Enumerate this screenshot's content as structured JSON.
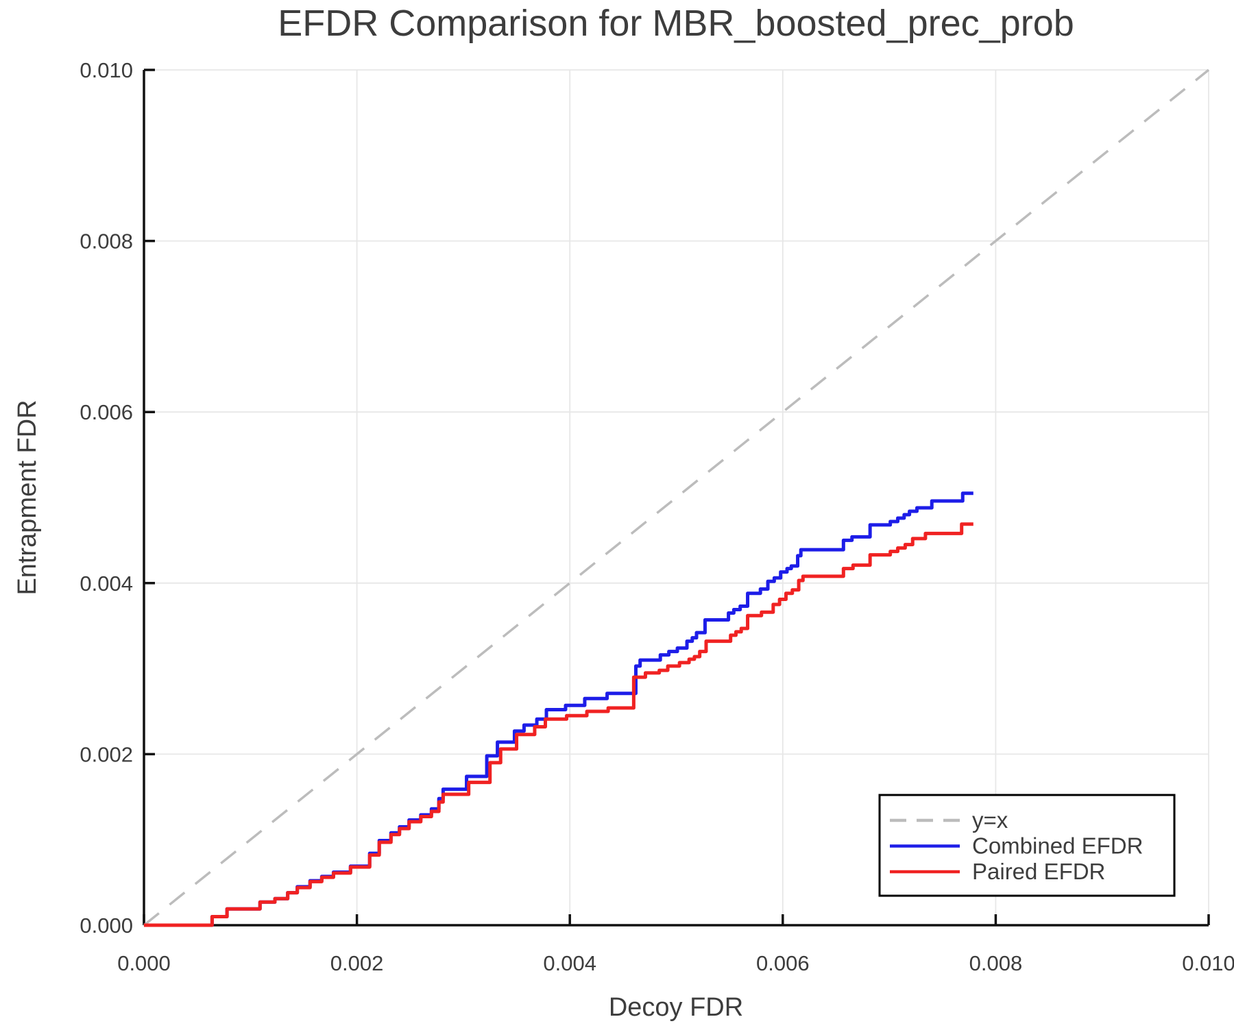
{
  "chart_data": {
    "type": "line",
    "title": "EFDR Comparison for MBR_boosted_prec_prob",
    "xlabel": "Decoy FDR",
    "ylabel": "Entrapment FDR",
    "xlim": [
      0.0,
      0.01
    ],
    "ylim": [
      0.0,
      0.01
    ],
    "grid": true,
    "legend_position": "bottom-right",
    "xticks": {
      "values": [
        0.0,
        0.002,
        0.004,
        0.006,
        0.008,
        0.01
      ],
      "labels": [
        "0.000",
        "0.002",
        "0.004",
        "0.006",
        "0.008",
        "0.010"
      ]
    },
    "yticks": {
      "values": [
        0.0,
        0.002,
        0.004,
        0.006,
        0.008,
        0.01
      ],
      "labels": [
        "0.000",
        "0.002",
        "0.004",
        "0.006",
        "0.008",
        "0.010"
      ]
    },
    "style": {
      "grid_color": "#e7e7e7",
      "spine_color": "#111111",
      "text_color": "#3d3d3d",
      "legend_border_color": "#000000",
      "legend_fill": "#ffffff",
      "background": "#ffffff"
    },
    "series": [
      {
        "name": "y=x",
        "color": "#bcbcbc",
        "dashed": true,
        "step": false,
        "width": 3.5,
        "points": [
          [
            0.0,
            0.0
          ],
          [
            0.01,
            0.01
          ]
        ]
      },
      {
        "name": "Combined EFDR",
        "color": "#1d1de8",
        "dashed": false,
        "step": true,
        "width": 5,
        "points": [
          [
            0.0,
            0.0
          ],
          [
            0.00064,
            0.0001
          ],
          [
            0.00078,
            0.00019
          ],
          [
            0.00109,
            0.00027
          ],
          [
            0.00123,
            0.00031
          ],
          [
            0.00135,
            0.00038
          ],
          [
            0.00144,
            0.00045
          ],
          [
            0.00156,
            0.00052
          ],
          [
            0.00167,
            0.00057
          ],
          [
            0.00178,
            0.00062
          ],
          [
            0.00194,
            0.00069
          ],
          [
            0.00212,
            0.00084
          ],
          [
            0.00221,
            0.00099
          ],
          [
            0.00232,
            0.00108
          ],
          [
            0.0024,
            0.00115
          ],
          [
            0.00249,
            0.00123
          ],
          [
            0.0026,
            0.00129
          ],
          [
            0.0027,
            0.00136
          ],
          [
            0.00277,
            0.00148
          ],
          [
            0.00281,
            0.00159
          ],
          [
            0.00303,
            0.00174
          ],
          [
            0.00322,
            0.00198
          ],
          [
            0.00332,
            0.00214
          ],
          [
            0.00348,
            0.00227
          ],
          [
            0.00357,
            0.00234
          ],
          [
            0.00369,
            0.00241
          ],
          [
            0.00378,
            0.00252
          ],
          [
            0.00396,
            0.00257
          ],
          [
            0.00414,
            0.00265
          ],
          [
            0.00435,
            0.00271
          ],
          [
            0.00462,
            0.00303
          ],
          [
            0.00466,
            0.0031
          ],
          [
            0.00485,
            0.00316
          ],
          [
            0.00493,
            0.0032
          ],
          [
            0.00501,
            0.00324
          ],
          [
            0.0051,
            0.00332
          ],
          [
            0.00515,
            0.00336
          ],
          [
            0.00519,
            0.00342
          ],
          [
            0.00527,
            0.00357
          ],
          [
            0.00549,
            0.00365
          ],
          [
            0.00554,
            0.00369
          ],
          [
            0.0056,
            0.00373
          ],
          [
            0.00567,
            0.00388
          ],
          [
            0.00579,
            0.00393
          ],
          [
            0.00586,
            0.00402
          ],
          [
            0.00592,
            0.00406
          ],
          [
            0.00598,
            0.00413
          ],
          [
            0.00604,
            0.00417
          ],
          [
            0.00608,
            0.0042
          ],
          [
            0.00614,
            0.00432
          ],
          [
            0.00617,
            0.00439
          ],
          [
            0.00657,
            0.0045
          ],
          [
            0.00665,
            0.00454
          ],
          [
            0.00682,
            0.00468
          ],
          [
            0.00701,
            0.00472
          ],
          [
            0.00708,
            0.00476
          ],
          [
            0.00714,
            0.0048
          ],
          [
            0.00719,
            0.00484
          ],
          [
            0.00726,
            0.00488
          ],
          [
            0.0074,
            0.00496
          ],
          [
            0.00769,
            0.00505
          ],
          [
            0.00779,
            0.00505
          ]
        ]
      },
      {
        "name": "Paired EFDR",
        "color": "#f02222",
        "dashed": false,
        "step": true,
        "width": 5,
        "points": [
          [
            0.0,
            0.0
          ],
          [
            0.00064,
            0.0001
          ],
          [
            0.00078,
            0.00019
          ],
          [
            0.00109,
            0.00027
          ],
          [
            0.00123,
            0.00031
          ],
          [
            0.00135,
            0.00038
          ],
          [
            0.00144,
            0.00044
          ],
          [
            0.00156,
            0.00051
          ],
          [
            0.00167,
            0.00056
          ],
          [
            0.00178,
            0.00061
          ],
          [
            0.00194,
            0.00068
          ],
          [
            0.00212,
            0.00082
          ],
          [
            0.00221,
            0.00097
          ],
          [
            0.00232,
            0.00106
          ],
          [
            0.0024,
            0.00113
          ],
          [
            0.00249,
            0.00121
          ],
          [
            0.0026,
            0.00127
          ],
          [
            0.0027,
            0.00133
          ],
          [
            0.00277,
            0.00144
          ],
          [
            0.00281,
            0.00153
          ],
          [
            0.00305,
            0.00167
          ],
          [
            0.00325,
            0.0019
          ],
          [
            0.00335,
            0.00206
          ],
          [
            0.0035,
            0.00223
          ],
          [
            0.00367,
            0.00232
          ],
          [
            0.00377,
            0.00241
          ],
          [
            0.00397,
            0.00245
          ],
          [
            0.00416,
            0.0025
          ],
          [
            0.00436,
            0.00254
          ],
          [
            0.0046,
            0.0029
          ],
          [
            0.00471,
            0.00295
          ],
          [
            0.00484,
            0.00298
          ],
          [
            0.00492,
            0.00303
          ],
          [
            0.00503,
            0.00307
          ],
          [
            0.00512,
            0.00311
          ],
          [
            0.00517,
            0.00314
          ],
          [
            0.00522,
            0.0032
          ],
          [
            0.00528,
            0.00332
          ],
          [
            0.00551,
            0.00339
          ],
          [
            0.00556,
            0.00343
          ],
          [
            0.00561,
            0.00347
          ],
          [
            0.00567,
            0.00362
          ],
          [
            0.0058,
            0.00366
          ],
          [
            0.00591,
            0.00375
          ],
          [
            0.00597,
            0.00381
          ],
          [
            0.00603,
            0.00388
          ],
          [
            0.00609,
            0.00392
          ],
          [
            0.00615,
            0.00403
          ],
          [
            0.00619,
            0.00408
          ],
          [
            0.00657,
            0.00417
          ],
          [
            0.00666,
            0.00421
          ],
          [
            0.00682,
            0.00433
          ],
          [
            0.00701,
            0.00437
          ],
          [
            0.00708,
            0.00441
          ],
          [
            0.00715,
            0.00445
          ],
          [
            0.00722,
            0.00452
          ],
          [
            0.00734,
            0.00458
          ],
          [
            0.00768,
            0.00469
          ],
          [
            0.00779,
            0.00469
          ]
        ]
      }
    ]
  }
}
